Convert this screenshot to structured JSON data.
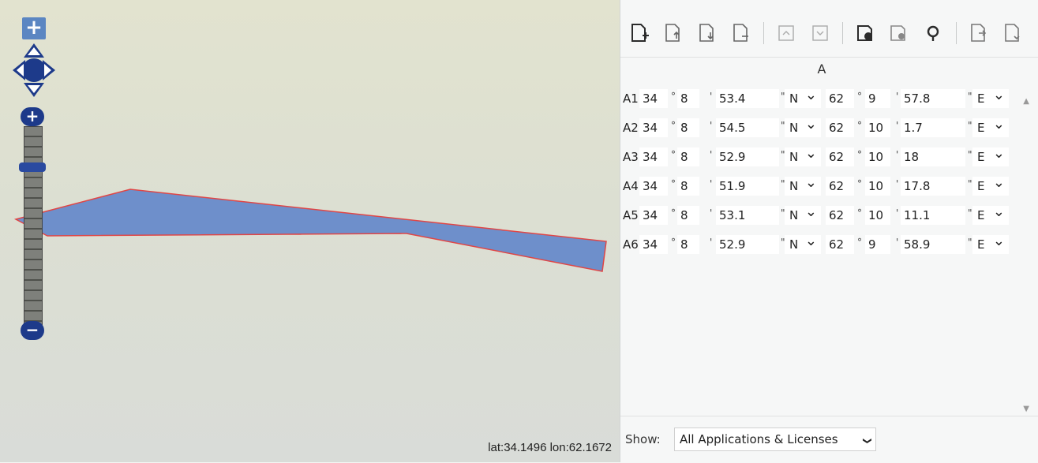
{
  "map": {
    "coordinate_readout": "lat:34.1496 lon:62.1672",
    "polygon_color": "#6e8fcb",
    "polygon_border": "#e04646",
    "zoom_in_label": "+",
    "zoom_out_label": "−",
    "top_zoom_label": "+"
  },
  "toolbar": {
    "icons": [
      "add-document-icon",
      "import-document-icon",
      "export-document-icon",
      "remove-document-icon",
      "move-up-icon",
      "move-down-icon",
      "folder-add-icon",
      "folder-remove-icon",
      "map-pin-icon",
      "next-document-icon",
      "last-document-icon"
    ]
  },
  "grid": {
    "column_header": "A",
    "rows": [
      {
        "label": "A1",
        "lat_deg": "34",
        "lat_min": "8",
        "lat_sec": "53.4",
        "lat_dir": "N",
        "lon_deg": "62",
        "lon_min": "9",
        "lon_sec": "57.8",
        "lon_dir": "E"
      },
      {
        "label": "A2",
        "lat_deg": "34",
        "lat_min": "8",
        "lat_sec": "54.5",
        "lat_dir": "N",
        "lon_deg": "62",
        "lon_min": "10",
        "lon_sec": "1.7",
        "lon_dir": "E"
      },
      {
        "label": "A3",
        "lat_deg": "34",
        "lat_min": "8",
        "lat_sec": "52.9",
        "lat_dir": "N",
        "lon_deg": "62",
        "lon_min": "10",
        "lon_sec": "18",
        "lon_dir": "E"
      },
      {
        "label": "A4",
        "lat_deg": "34",
        "lat_min": "8",
        "lat_sec": "51.9",
        "lat_dir": "N",
        "lon_deg": "62",
        "lon_min": "10",
        "lon_sec": "17.8",
        "lon_dir": "E"
      },
      {
        "label": "A5",
        "lat_deg": "34",
        "lat_min": "8",
        "lat_sec": "53.1",
        "lat_dir": "N",
        "lon_deg": "62",
        "lon_min": "10",
        "lon_sec": "11.1",
        "lon_dir": "E"
      },
      {
        "label": "A6",
        "lat_deg": "34",
        "lat_min": "8",
        "lat_sec": "52.9",
        "lat_dir": "N",
        "lon_deg": "62",
        "lon_min": "9",
        "lon_sec": "58.9",
        "lon_dir": "E"
      }
    ]
  },
  "footer": {
    "show_label": "Show:",
    "show_value": "All Applications & Licenses"
  }
}
